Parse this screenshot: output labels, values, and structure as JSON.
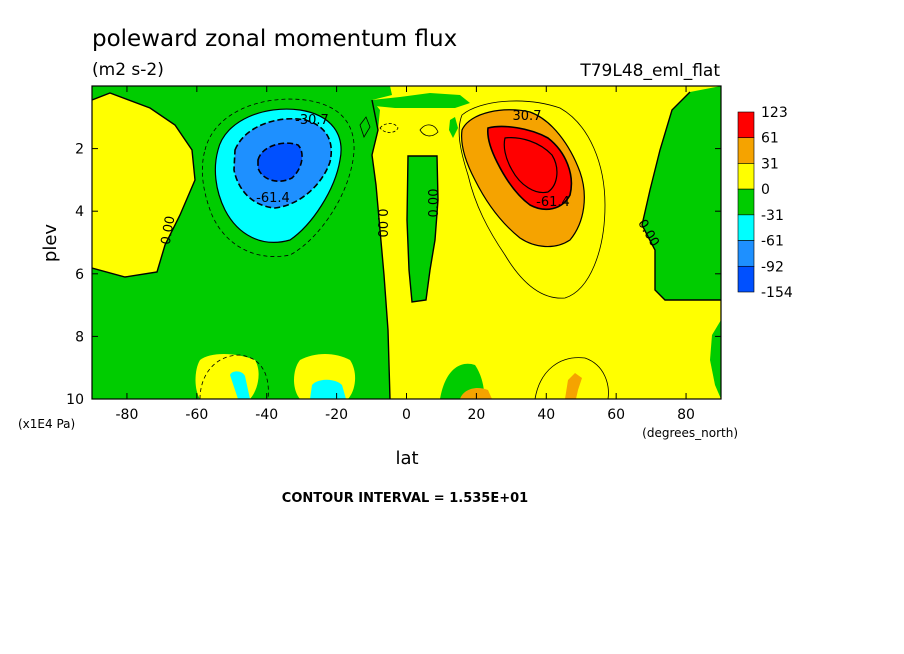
{
  "chart_data": {
    "type": "heatmap",
    "title": "poleward zonal momentum flux",
    "units": "(m2 s-2)",
    "run_label": "T79L48_eml_flat",
    "xlabel": "lat",
    "x_units": "(degrees_north)",
    "ylabel": "plev",
    "y_units": "(x1E4 Pa)",
    "xlim": [
      -90,
      90
    ],
    "ylim": [
      10,
      0
    ],
    "x_ticks": [
      "-80",
      "-60",
      "-40",
      "-20",
      "0",
      "20",
      "40",
      "60",
      "80"
    ],
    "y_ticks": [
      "2",
      "4",
      "6",
      "8",
      "10"
    ],
    "contour_interval": "CONTOUR INTERVAL = 1.535E+01",
    "colorbar": {
      "levels": [
        "123",
        "61",
        "31",
        "0",
        "-31",
        "-61",
        "-92",
        "-154"
      ],
      "colors": [
        "#ff0000",
        "#f5a300",
        "#ffff00",
        "#00cc00",
        "#00ffff",
        "#1e90ff",
        "#0050ff"
      ]
    },
    "contour_labels": [
      "-30.7",
      "-61.4",
      "30.7",
      "-61.4",
      "0.00",
      "0.00",
      "0.00",
      "0.00"
    ],
    "features": [
      {
        "name": "southern hemisphere negative jet",
        "lat": -37,
        "plev": 2.5,
        "min_value": -92
      },
      {
        "name": "northern hemisphere positive jet",
        "lat": 35,
        "plev": 2.5,
        "max_value": 123
      }
    ]
  }
}
